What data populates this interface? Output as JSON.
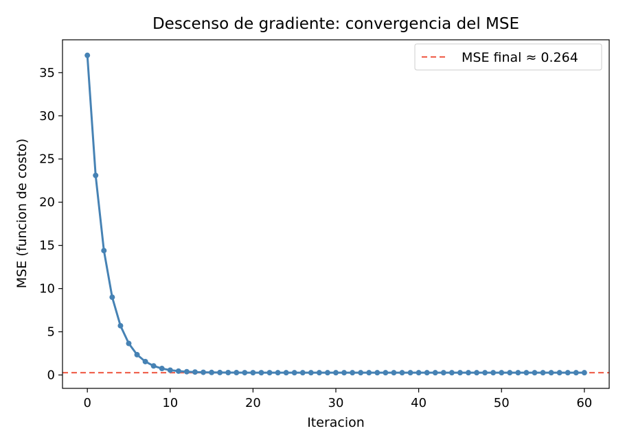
{
  "chart_data": {
    "type": "line",
    "title": "Descenso de gradiente: convergencia del MSE",
    "xlabel": "Iteracion",
    "ylabel": "MSE (funcion de costo)",
    "xlim": [
      -3,
      63
    ],
    "ylim": [
      -1.55,
      38.8
    ],
    "xticks": [
      0,
      10,
      20,
      30,
      40,
      50,
      60
    ],
    "yticks": [
      0,
      5,
      10,
      15,
      20,
      25,
      30,
      35
    ],
    "grid": false,
    "legend_position": "top-right",
    "series": [
      {
        "color": "#4682b4",
        "marker": "circle",
        "x": [
          0,
          1,
          2,
          3,
          4,
          5,
          6,
          7,
          8,
          9,
          10,
          11,
          12,
          13,
          14,
          15,
          16,
          17,
          18,
          19,
          20,
          21,
          22,
          23,
          24,
          25,
          26,
          27,
          28,
          29,
          30,
          31,
          32,
          33,
          34,
          35,
          36,
          37,
          38,
          39,
          40,
          41,
          42,
          43,
          44,
          45,
          46,
          47,
          48,
          49,
          50,
          51,
          52,
          53,
          54,
          55,
          56,
          57,
          58,
          59,
          60
        ],
        "y": [
          37.0,
          23.1,
          14.4,
          9.0,
          5.7,
          3.65,
          2.35,
          1.55,
          1.05,
          0.75,
          0.56,
          0.45,
          0.38,
          0.34,
          0.31,
          0.295,
          0.285,
          0.278,
          0.273,
          0.27,
          0.268,
          0.267,
          0.266,
          0.265,
          0.265,
          0.265,
          0.264,
          0.264,
          0.264,
          0.264,
          0.264,
          0.264,
          0.264,
          0.264,
          0.264,
          0.264,
          0.264,
          0.264,
          0.264,
          0.264,
          0.264,
          0.264,
          0.264,
          0.264,
          0.264,
          0.264,
          0.264,
          0.264,
          0.264,
          0.264,
          0.264,
          0.264,
          0.264,
          0.264,
          0.264,
          0.264,
          0.264,
          0.264,
          0.264,
          0.264,
          0.264
        ]
      }
    ],
    "reference_line": {
      "orientation": "horizontal",
      "value": 0.264,
      "label": "MSE final ≈ 0.264",
      "color": "#f06450",
      "style": "dashed"
    }
  }
}
